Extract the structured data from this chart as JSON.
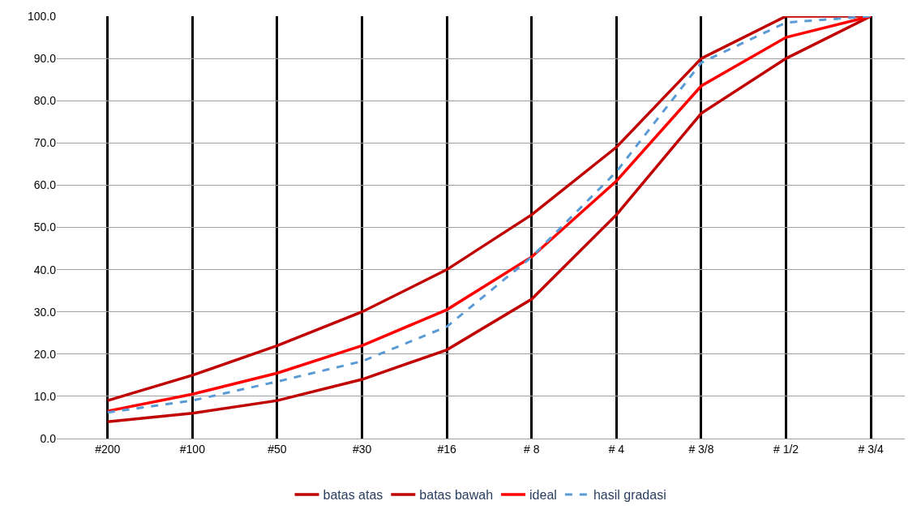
{
  "chart_data": {
    "type": "line",
    "categories": [
      "#200",
      "#100",
      "#50",
      "#30",
      "#16",
      "# 8",
      "# 4",
      "# 3/8",
      "# 1/2",
      "# 3/4"
    ],
    "ylim": [
      0,
      100
    ],
    "yticks": [
      {
        "value": 0,
        "label": "0.0"
      },
      {
        "value": 10,
        "label": "10.0"
      },
      {
        "value": 20,
        "label": "20.0"
      },
      {
        "value": 30,
        "label": "30.0"
      },
      {
        "value": 40,
        "label": "40.0"
      },
      {
        "value": 50,
        "label": "50.0"
      },
      {
        "value": 60,
        "label": "60.0"
      },
      {
        "value": 70,
        "label": "70.0"
      },
      {
        "value": 80,
        "label": "80.0"
      },
      {
        "value": 90,
        "label": "90.0"
      },
      {
        "value": 100,
        "label": "100.0"
      }
    ],
    "grid": true,
    "legend": "bottom",
    "marker": "none",
    "series": [
      {
        "name": "batas atas",
        "color": "#c00000",
        "line_style": "solid",
        "values": [
          9,
          15,
          22,
          30,
          40,
          53,
          69,
          90,
          100,
          100
        ]
      },
      {
        "name": "batas bawah",
        "color": "#c00000",
        "line_style": "solid",
        "values": [
          4,
          6,
          9,
          14,
          21,
          33,
          53,
          77,
          90,
          100
        ]
      },
      {
        "name": "ideal",
        "color": "#ff0000",
        "line_style": "solid",
        "values": [
          6.5,
          10.5,
          15.5,
          22,
          30.5,
          43,
          61,
          83.5,
          95,
          100
        ]
      },
      {
        "name": "hasil gradasi",
        "color": "#5b9bd5",
        "line_style": "dashed",
        "values": [
          6.2,
          9,
          13.5,
          18.3,
          26.5,
          43,
          63.2,
          89,
          98.5,
          100
        ]
      }
    ]
  }
}
